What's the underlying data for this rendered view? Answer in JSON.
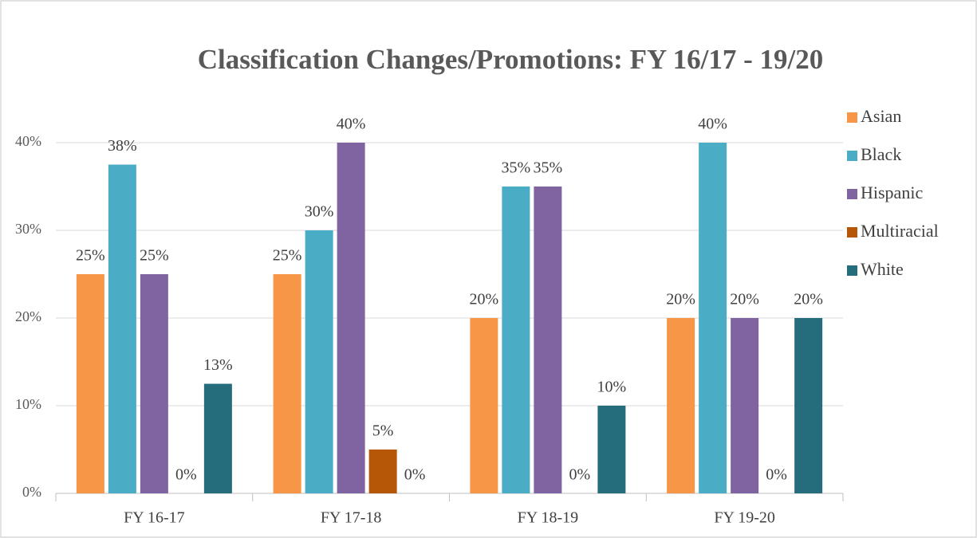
{
  "chart_data": {
    "type": "bar",
    "title": "Classification Changes/Promotions: FY 16/17 - 19/20",
    "categories": [
      "FY 16-17",
      "FY 17-18",
      "FY 18-19",
      "FY 19-20"
    ],
    "series": [
      {
        "name": "Asian",
        "color": "#f79646",
        "values": [
          25,
          25,
          20,
          20
        ],
        "value_labels": [
          "25%",
          "25%",
          "20%",
          "20%"
        ]
      },
      {
        "name": "Black",
        "color": "#4bacc6",
        "values": [
          37.5,
          30,
          35,
          40
        ],
        "value_labels": [
          "38%",
          "30%",
          "35%",
          "40%"
        ]
      },
      {
        "name": "Hispanic",
        "color": "#8064a2",
        "values": [
          25,
          40,
          35,
          20
        ],
        "value_labels": [
          "25%",
          "40%",
          "35%",
          "20%"
        ]
      },
      {
        "name": "Multiracial",
        "color": "#b65708",
        "values": [
          0,
          5,
          0,
          0
        ],
        "value_labels": [
          "0%",
          "5%",
          "0%",
          "0%"
        ]
      },
      {
        "name": "White",
        "color": "#256c7d",
        "values": [
          12.5,
          0,
          10,
          20
        ],
        "value_labels": [
          "13%",
          "0%",
          "10%",
          "20%"
        ]
      }
    ],
    "ylim": [
      0,
      40
    ],
    "yticks": [
      {
        "value": 0,
        "label": "0%"
      },
      {
        "value": 10,
        "label": "10%"
      },
      {
        "value": 20,
        "label": "20%"
      },
      {
        "value": 30,
        "label": "30%"
      },
      {
        "value": 40,
        "label": "40%"
      }
    ],
    "grid": true,
    "legend": "right"
  }
}
